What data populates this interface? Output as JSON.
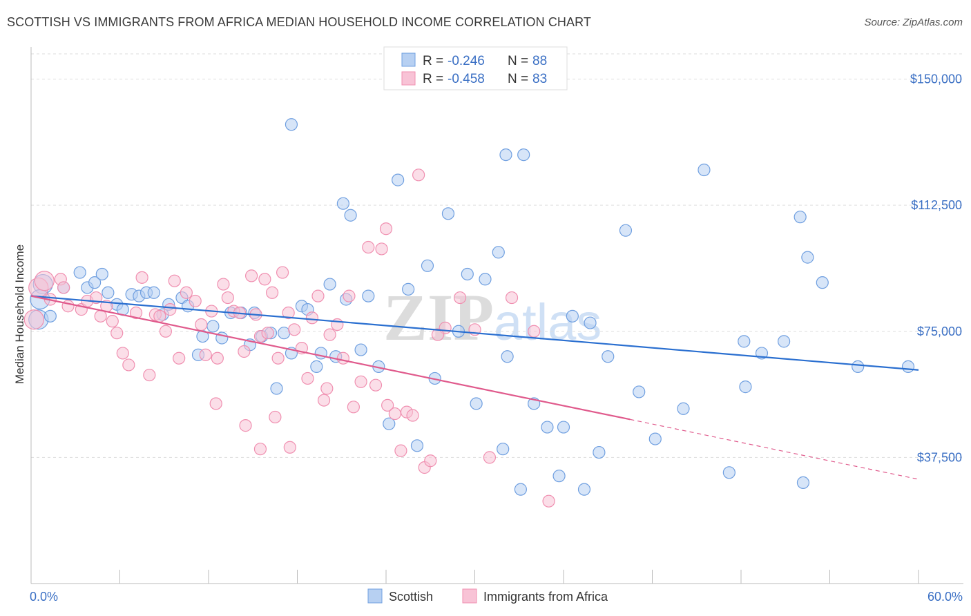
{
  "title": "SCOTTISH VS IMMIGRANTS FROM AFRICA MEDIAN HOUSEHOLD INCOME CORRELATION CHART",
  "source": "Source: ZipAtlas.com",
  "watermark": {
    "zip": "ZIP",
    "atlas": "atlas"
  },
  "colors": {
    "blue": "#6f9fe0",
    "blue_fill": "#b7d0f2",
    "pink": "#f08fb0",
    "pink_fill": "#f8c3d6",
    "blue_line": "#2a6fd0",
    "pink_line": "#e05a8c",
    "label": "#3a6fc4"
  },
  "legend": {
    "rows": [
      {
        "r_label": "R = ",
        "r_value": "-0.246",
        "n_label": "N = ",
        "n_value": "88"
      },
      {
        "r_label": "R = ",
        "r_value": "-0.458",
        "n_label": "N = ",
        "n_value": "83"
      }
    ]
  },
  "bottom_legend": [
    "Scottish",
    "Immigrants from Africa"
  ],
  "chart_data": {
    "type": "scatter",
    "title": "SCOTTISH VS IMMIGRANTS FROM AFRICA MEDIAN HOUSEHOLD INCOME CORRELATION CHART",
    "xlabel": "",
    "ylabel": "Median Household Income",
    "xlim": [
      0,
      60
    ],
    "ylim": [
      0,
      157500
    ],
    "x_tick_labels": [
      "0.0%",
      "60.0%"
    ],
    "y_ticks": [
      37500,
      75000,
      112500,
      150000
    ],
    "y_tick_labels": [
      "$37,500",
      "$75,000",
      "$112,500",
      "$150,000"
    ],
    "grid": true,
    "legend_position": "top-center",
    "series": [
      {
        "name": "Scottish",
        "trend": {
          "x": [
            0,
            60
          ],
          "y": [
            85500,
            63500
          ]
        },
        "points": [
          [
            0.5,
            78500
          ],
          [
            0.8,
            89000
          ],
          [
            0.6,
            84500
          ],
          [
            1.3,
            79500
          ],
          [
            2.2,
            88000
          ],
          [
            3.3,
            92500
          ],
          [
            3.8,
            88000
          ],
          [
            4.3,
            89500
          ],
          [
            4.8,
            92000
          ],
          [
            5.2,
            86500
          ],
          [
            5.8,
            83000
          ],
          [
            6.2,
            81500
          ],
          [
            6.8,
            86000
          ],
          [
            7.3,
            85500
          ],
          [
            7.8,
            86500
          ],
          [
            8.3,
            86500
          ],
          [
            8.9,
            80000
          ],
          [
            9.3,
            83000
          ],
          [
            10.2,
            85000
          ],
          [
            10.6,
            82500
          ],
          [
            11.3,
            68000
          ],
          [
            11.6,
            73500
          ],
          [
            12.3,
            76500
          ],
          [
            12.9,
            73000
          ],
          [
            13.5,
            80500
          ],
          [
            14.2,
            80500
          ],
          [
            14.8,
            71000
          ],
          [
            15.1,
            80500
          ],
          [
            15.6,
            73500
          ],
          [
            16.2,
            74500
          ],
          [
            16.6,
            58000
          ],
          [
            17.1,
            74500
          ],
          [
            17.6,
            68500
          ],
          [
            18.3,
            82500
          ],
          [
            18.7,
            81500
          ],
          [
            19.3,
            64500
          ],
          [
            19.6,
            68500
          ],
          [
            20.2,
            89000
          ],
          [
            20.6,
            67500
          ],
          [
            21.3,
            84500
          ],
          [
            21.6,
            109500
          ],
          [
            22.3,
            69500
          ],
          [
            22.8,
            85500
          ],
          [
            23.5,
            64500
          ],
          [
            24.2,
            47500
          ],
          [
            24.8,
            120000
          ],
          [
            25.5,
            87500
          ],
          [
            26.1,
            41000
          ],
          [
            26.8,
            94500
          ],
          [
            27.3,
            61000
          ],
          [
            28.2,
            110000
          ],
          [
            28.9,
            75000
          ],
          [
            29.5,
            92000
          ],
          [
            30.1,
            53500
          ],
          [
            30.7,
            90500
          ],
          [
            31.6,
            98500
          ],
          [
            31.9,
            40000
          ],
          [
            32.2,
            67500
          ],
          [
            33.1,
            28000
          ],
          [
            34.0,
            53500
          ],
          [
            34.9,
            46500
          ],
          [
            35.7,
            32000
          ],
          [
            36.0,
            46500
          ],
          [
            36.6,
            79500
          ],
          [
            37.4,
            28000
          ],
          [
            37.8,
            77500
          ],
          [
            38.4,
            39000
          ],
          [
            39.0,
            67500
          ],
          [
            40.2,
            105000
          ],
          [
            41.1,
            57000
          ],
          [
            42.2,
            43000
          ],
          [
            44.1,
            52000
          ],
          [
            45.5,
            123000
          ],
          [
            47.2,
            33000
          ],
          [
            48.2,
            72000
          ],
          [
            48.3,
            58500
          ],
          [
            49.4,
            68500
          ],
          [
            50.9,
            72000
          ],
          [
            52.0,
            109000
          ],
          [
            52.2,
            30000
          ],
          [
            52.5,
            97000
          ],
          [
            53.5,
            89500
          ],
          [
            55.9,
            64500
          ],
          [
            59.3,
            64500
          ],
          [
            17.6,
            136500
          ],
          [
            21.1,
            113000
          ],
          [
            32.1,
            127500
          ],
          [
            33.3,
            127500
          ]
        ]
      },
      {
        "name": "Immigrants from Africa",
        "trend": {
          "x": [
            0,
            40.5,
            60
          ],
          "y": [
            85500,
            48800,
            31000
          ]
        },
        "points": [
          [
            0.2,
            78500
          ],
          [
            0.5,
            88000
          ],
          [
            0.9,
            90000
          ],
          [
            1.3,
            84500
          ],
          [
            2.0,
            90500
          ],
          [
            2.2,
            88000
          ],
          [
            2.5,
            82500
          ],
          [
            3.4,
            81500
          ],
          [
            3.8,
            84000
          ],
          [
            4.4,
            85000
          ],
          [
            4.7,
            79500
          ],
          [
            5.1,
            82500
          ],
          [
            5.5,
            78000
          ],
          [
            5.8,
            74500
          ],
          [
            6.2,
            68500
          ],
          [
            6.6,
            65000
          ],
          [
            7.1,
            80500
          ],
          [
            7.5,
            91000
          ],
          [
            8.0,
            62000
          ],
          [
            8.4,
            80000
          ],
          [
            8.7,
            79500
          ],
          [
            9.1,
            75000
          ],
          [
            9.4,
            81500
          ],
          [
            9.7,
            90000
          ],
          [
            10.0,
            67000
          ],
          [
            10.5,
            86500
          ],
          [
            11.1,
            84000
          ],
          [
            11.5,
            77000
          ],
          [
            11.8,
            68000
          ],
          [
            12.2,
            81000
          ],
          [
            12.6,
            67000
          ],
          [
            13.0,
            89000
          ],
          [
            13.3,
            85000
          ],
          [
            13.7,
            81000
          ],
          [
            14.1,
            80500
          ],
          [
            14.4,
            69000
          ],
          [
            14.9,
            91500
          ],
          [
            15.2,
            80000
          ],
          [
            15.5,
            73500
          ],
          [
            15.8,
            90500
          ],
          [
            16.0,
            74500
          ],
          [
            16.3,
            86500
          ],
          [
            16.7,
            67000
          ],
          [
            17.0,
            92500
          ],
          [
            17.4,
            80500
          ],
          [
            17.8,
            75500
          ],
          [
            18.3,
            70000
          ],
          [
            18.7,
            61000
          ],
          [
            19.0,
            79000
          ],
          [
            19.4,
            85500
          ],
          [
            19.8,
            54500
          ],
          [
            20.2,
            74000
          ],
          [
            20.7,
            77000
          ],
          [
            21.1,
            67000
          ],
          [
            21.5,
            85500
          ],
          [
            21.8,
            52500
          ],
          [
            22.3,
            60000
          ],
          [
            22.8,
            100000
          ],
          [
            23.3,
            59000
          ],
          [
            23.7,
            99500
          ],
          [
            24.1,
            53000
          ],
          [
            24.6,
            50500
          ],
          [
            25.0,
            39500
          ],
          [
            25.4,
            51000
          ],
          [
            25.8,
            50000
          ],
          [
            26.2,
            121500
          ],
          [
            26.6,
            34500
          ],
          [
            27.0,
            36500
          ],
          [
            28.0,
            76000
          ],
          [
            29.0,
            85000
          ],
          [
            30.0,
            75500
          ],
          [
            31.0,
            37500
          ],
          [
            32.5,
            85000
          ],
          [
            35.0,
            24500
          ],
          [
            34.0,
            75000
          ],
          [
            24.0,
            105500
          ],
          [
            27.5,
            74000
          ],
          [
            20.0,
            58000
          ],
          [
            14.5,
            47000
          ],
          [
            15.5,
            40000
          ],
          [
            17.5,
            40500
          ],
          [
            16.5,
            49500
          ],
          [
            12.5,
            53500
          ]
        ]
      }
    ]
  }
}
